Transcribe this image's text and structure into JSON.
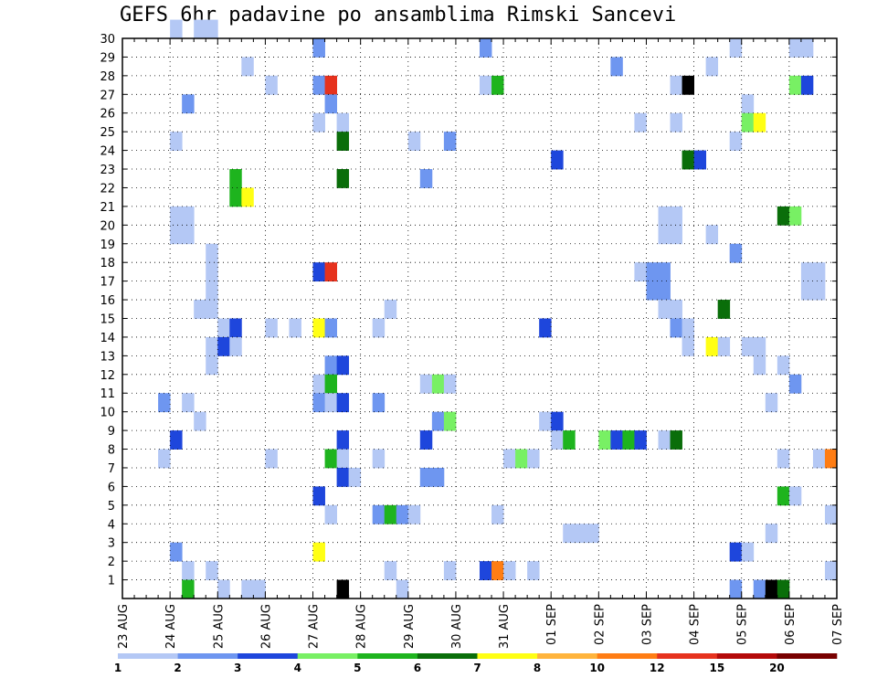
{
  "chart_data": {
    "type": "heatmap",
    "title": "GEFS 6hr padavine po ansamblima Rimski Sancevi",
    "x_tick_labels": [
      "23 AUG",
      "24 AUG",
      "25 AUG",
      "26 AUG",
      "27 AUG",
      "28 AUG",
      "29 AUG",
      "30 AUG",
      "31 AUG",
      "01 SEP",
      "02 SEP",
      "03 SEP",
      "04 SEP",
      "05 SEP",
      "06 SEP",
      "07 SEP"
    ],
    "x_steps_per_day": 4,
    "x_range_steps": [
      0,
      60
    ],
    "y_tick_labels": [
      "1",
      "2",
      "3",
      "4",
      "5",
      "6",
      "7",
      "8",
      "9",
      "10",
      "11",
      "12",
      "13",
      "14",
      "15",
      "16",
      "17",
      "18",
      "19",
      "20",
      "21",
      "22",
      "23",
      "24",
      "25",
      "26",
      "27",
      "28",
      "29",
      "30"
    ],
    "y_range": [
      0,
      30
    ],
    "grid": true,
    "colorbar": {
      "labels": [
        "1",
        "2",
        "3",
        "4",
        "5",
        "6",
        "7",
        "8",
        "10",
        "12",
        "15",
        "20"
      ],
      "colors": [
        "#b4c8f5",
        "#6e96f0",
        "#1e46dc",
        "#78f064",
        "#1eb41e",
        "#0a6e0a",
        "#ffff14",
        "#ffb43c",
        "#ff7d14",
        "#e6321e",
        "#b40a0a",
        "#780000"
      ]
    },
    "cells": [
      [
        4,
        30,
        1
      ],
      [
        6,
        30,
        1
      ],
      [
        7,
        30,
        1
      ],
      [
        16,
        29,
        2
      ],
      [
        30,
        29,
        2
      ],
      [
        51,
        29,
        1
      ],
      [
        56,
        29,
        1
      ],
      [
        57,
        29,
        1
      ],
      [
        10,
        28,
        1
      ],
      [
        41,
        28,
        2
      ],
      [
        49,
        28,
        1
      ],
      [
        12,
        27,
        1
      ],
      [
        16,
        27,
        2
      ],
      [
        17,
        27,
        10
      ],
      [
        30,
        27,
        1
      ],
      [
        31,
        27,
        5
      ],
      [
        46,
        27,
        1
      ],
      [
        47,
        27,
        15
      ],
      [
        56,
        27,
        4
      ],
      [
        57,
        27,
        3
      ],
      [
        5,
        26,
        2
      ],
      [
        17,
        26,
        2
      ],
      [
        52,
        26,
        1
      ],
      [
        16,
        25,
        1
      ],
      [
        18,
        25,
        1
      ],
      [
        43,
        25,
        1
      ],
      [
        46,
        25,
        1
      ],
      [
        52,
        25,
        4
      ],
      [
        53,
        25,
        7
      ],
      [
        4,
        24,
        1
      ],
      [
        18,
        24,
        6
      ],
      [
        24,
        24,
        1
      ],
      [
        27,
        24,
        2
      ],
      [
        51,
        24,
        1
      ],
      [
        36,
        23,
        3
      ],
      [
        47,
        23,
        6
      ],
      [
        48,
        23,
        3
      ],
      [
        9,
        22,
        5
      ],
      [
        18,
        22,
        6
      ],
      [
        25,
        22,
        2
      ],
      [
        9,
        21,
        5
      ],
      [
        10,
        21,
        7
      ],
      [
        4,
        20,
        1
      ],
      [
        5,
        20,
        1
      ],
      [
        45,
        20,
        1
      ],
      [
        46,
        20,
        1
      ],
      [
        55,
        20,
        6
      ],
      [
        56,
        20,
        4
      ],
      [
        4,
        19,
        1
      ],
      [
        5,
        19,
        1
      ],
      [
        45,
        19,
        1
      ],
      [
        46,
        19,
        1
      ],
      [
        49,
        19,
        1
      ],
      [
        7,
        18,
        1
      ],
      [
        51,
        18,
        2
      ],
      [
        7,
        17,
        1
      ],
      [
        16,
        17,
        3
      ],
      [
        17,
        17,
        10
      ],
      [
        43,
        17,
        1
      ],
      [
        44,
        17,
        2
      ],
      [
        45,
        17,
        2
      ],
      [
        57,
        17,
        1
      ],
      [
        58,
        17,
        1
      ],
      [
        7,
        16,
        1
      ],
      [
        44,
        16,
        2
      ],
      [
        45,
        16,
        2
      ],
      [
        57,
        16,
        1
      ],
      [
        58,
        16,
        1
      ],
      [
        6,
        15,
        1
      ],
      [
        7,
        15,
        1
      ],
      [
        22,
        15,
        1
      ],
      [
        45,
        15,
        1
      ],
      [
        46,
        15,
        1
      ],
      [
        50,
        15,
        6
      ],
      [
        8,
        14,
        1
      ],
      [
        9,
        14,
        3
      ],
      [
        12,
        14,
        1
      ],
      [
        14,
        14,
        1
      ],
      [
        16,
        14,
        7
      ],
      [
        17,
        14,
        2
      ],
      [
        21,
        14,
        1
      ],
      [
        35,
        14,
        3
      ],
      [
        46,
        14,
        2
      ],
      [
        47,
        14,
        1
      ],
      [
        7,
        13,
        1
      ],
      [
        8,
        13,
        3
      ],
      [
        9,
        13,
        1
      ],
      [
        47,
        13,
        1
      ],
      [
        49,
        13,
        7
      ],
      [
        50,
        13,
        1
      ],
      [
        52,
        13,
        1
      ],
      [
        53,
        13,
        1
      ],
      [
        7,
        12,
        1
      ],
      [
        17,
        12,
        2
      ],
      [
        18,
        12,
        3
      ],
      [
        53,
        12,
        1
      ],
      [
        55,
        12,
        1
      ],
      [
        16,
        11,
        1
      ],
      [
        17,
        11,
        5
      ],
      [
        25,
        11,
        1
      ],
      [
        26,
        11,
        4
      ],
      [
        27,
        11,
        1
      ],
      [
        56,
        11,
        2
      ],
      [
        3,
        10,
        2
      ],
      [
        5,
        10,
        1
      ],
      [
        16,
        10,
        2
      ],
      [
        17,
        10,
        1
      ],
      [
        18,
        10,
        3
      ],
      [
        21,
        10,
        2
      ],
      [
        54,
        10,
        1
      ],
      [
        6,
        9,
        1
      ],
      [
        26,
        9,
        2
      ],
      [
        27,
        9,
        4
      ],
      [
        35,
        9,
        1
      ],
      [
        36,
        9,
        3
      ],
      [
        4,
        8,
        3
      ],
      [
        18,
        8,
        3
      ],
      [
        25,
        8,
        3
      ],
      [
        36,
        8,
        1
      ],
      [
        37,
        8,
        5
      ],
      [
        40,
        8,
        4
      ],
      [
        41,
        8,
        3
      ],
      [
        42,
        8,
        5
      ],
      [
        43,
        8,
        3
      ],
      [
        45,
        8,
        1
      ],
      [
        46,
        8,
        6
      ],
      [
        3,
        7,
        1
      ],
      [
        12,
        7,
        1
      ],
      [
        17,
        7,
        5
      ],
      [
        18,
        7,
        1
      ],
      [
        21,
        7,
        1
      ],
      [
        32,
        7,
        1
      ],
      [
        33,
        7,
        4
      ],
      [
        34,
        7,
        1
      ],
      [
        55,
        7,
        1
      ],
      [
        58,
        7,
        1
      ],
      [
        59,
        7,
        9
      ],
      [
        18,
        6,
        3
      ],
      [
        19,
        6,
        1
      ],
      [
        25,
        6,
        2
      ],
      [
        26,
        6,
        2
      ],
      [
        16,
        5,
        3
      ],
      [
        55,
        5,
        5
      ],
      [
        56,
        5,
        1
      ],
      [
        17,
        4,
        1
      ],
      [
        21,
        4,
        2
      ],
      [
        22,
        4,
        5
      ],
      [
        23,
        4,
        2
      ],
      [
        24,
        4,
        1
      ],
      [
        31,
        4,
        1
      ],
      [
        59,
        4,
        1
      ],
      [
        37,
        3,
        1
      ],
      [
        38,
        3,
        1
      ],
      [
        39,
        3,
        1
      ],
      [
        54,
        3,
        1
      ],
      [
        4,
        2,
        2
      ],
      [
        16,
        2,
        7
      ],
      [
        51,
        2,
        3
      ],
      [
        52,
        2,
        1
      ],
      [
        5,
        1,
        1
      ],
      [
        7,
        1,
        1
      ],
      [
        22,
        1,
        1
      ],
      [
        27,
        1,
        1
      ],
      [
        30,
        1,
        3
      ],
      [
        31,
        1,
        9
      ],
      [
        32,
        1,
        1
      ],
      [
        34,
        1,
        1
      ],
      [
        59,
        1,
        1
      ],
      [
        5,
        0,
        5
      ],
      [
        8,
        0,
        1
      ],
      [
        10,
        0,
        1
      ],
      [
        11,
        0,
        1
      ],
      [
        18,
        0,
        16
      ],
      [
        23,
        0,
        1
      ],
      [
        51,
        0,
        2
      ],
      [
        53,
        0,
        2
      ],
      [
        54,
        0,
        20
      ],
      [
        55,
        0,
        6
      ]
    ]
  }
}
